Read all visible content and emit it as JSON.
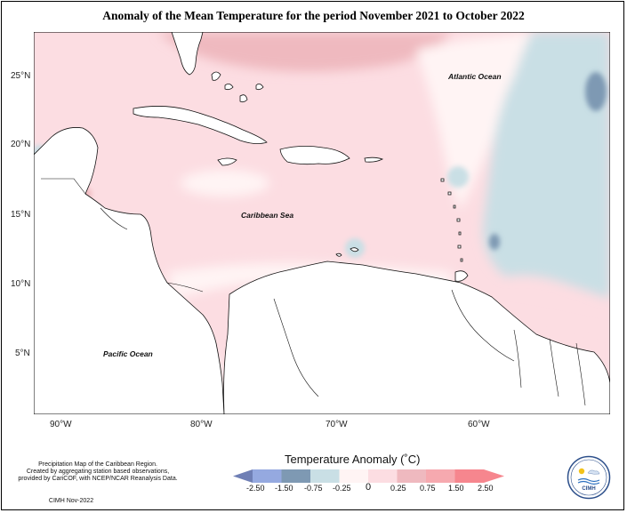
{
  "title": "Anomaly of the Mean Temperature for the period November 2021 to October 2022",
  "map": {
    "lat_labels": [
      "25°N",
      "20°N",
      "15°N",
      "10°N",
      "5°N"
    ],
    "lon_labels": [
      "90°W",
      "80°W",
      "70°W",
      "60°W"
    ],
    "region_labels": {
      "atlantic": "Atlantic Ocean",
      "caribbean": "Caribbean Sea",
      "pacific": "Pacific Ocean"
    }
  },
  "legend": {
    "title": "Temperature Anomaly (˚C)",
    "ticks": [
      "-2.50",
      "-1.50",
      "-0.75",
      "-0.25",
      "0",
      "0.25",
      "0.75",
      "1.50",
      "2.50"
    ],
    "colors": {
      "bin_-2.50_-1.50": "#6f7fb5",
      "bin_-1.50_-0.75": "#95a9e0",
      "bin_-0.75_-0.25": "#7e99b3",
      "bin_-0.25_0": "#c9dfe5",
      "bin_0_0.25": "#fff4f4",
      "bin_0.25_0.75": "#fcdde2",
      "bin_0.75_1.50": "#efb9bf",
      "bin_1.50_2.50": "#f6868e"
    }
  },
  "notes": {
    "description": [
      "Precipitation Map of the Caribbean Region.",
      "Created by aggregating station based observations,",
      "provided by CariCOF, with NCEP/NCAR Reanalysis Data."
    ],
    "credit": "CIMH Nov-2022",
    "logo_text": "CIMH"
  }
}
